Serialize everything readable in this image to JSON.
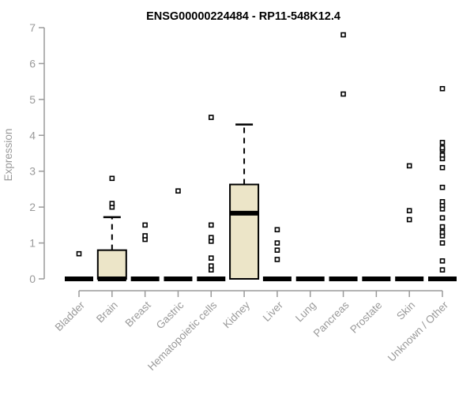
{
  "chart_data": {
    "type": "boxplot",
    "title": "ENSG00000224484 - RP11-548K12.4",
    "ylabel": "Expression",
    "xlabel": "",
    "ylim": [
      0,
      7
    ],
    "yticks": [
      0,
      1,
      2,
      3,
      4,
      5,
      6,
      7
    ],
    "grid": false,
    "legend": "none",
    "categories": [
      "Bladder",
      "Brain",
      "Breast",
      "Gastric",
      "Hematopoietic cells",
      "Kidney",
      "Liver",
      "Lung",
      "Pancreas",
      "Prostate",
      "Skin",
      "Unknown / Other"
    ],
    "boxes": [
      {
        "category": "Bladder",
        "q1": 0,
        "median": 0,
        "q3": 0,
        "whisker_low": 0,
        "whisker_high": 0,
        "outliers": [
          0.7
        ]
      },
      {
        "category": "Brain",
        "q1": 0,
        "median": 0,
        "q3": 0.8,
        "whisker_low": 0,
        "whisker_high": 1.72,
        "outliers": [
          2.0,
          2.1,
          2.8
        ]
      },
      {
        "category": "Breast",
        "q1": 0,
        "median": 0,
        "q3": 0,
        "whisker_low": 0,
        "whisker_high": 0,
        "outliers": [
          1.1,
          1.2,
          1.5
        ]
      },
      {
        "category": "Gastric",
        "q1": 0,
        "median": 0,
        "q3": 0,
        "whisker_low": 0,
        "whisker_high": 0,
        "outliers": [
          2.45
        ]
      },
      {
        "category": "Hematopoietic cells",
        "q1": 0,
        "median": 0,
        "q3": 0,
        "whisker_low": 0,
        "whisker_high": 0,
        "outliers": [
          0.25,
          0.36,
          0.58,
          1.05,
          1.15,
          1.5,
          4.5
        ]
      },
      {
        "category": "Kidney",
        "q1": 0,
        "median": 1.83,
        "q3": 2.63,
        "whisker_low": 0,
        "whisker_high": 4.3,
        "outliers": []
      },
      {
        "category": "Liver",
        "q1": 0,
        "median": 0,
        "q3": 0,
        "whisker_low": 0,
        "whisker_high": 0,
        "outliers": [
          0.54,
          0.8,
          1.0,
          1.37
        ]
      },
      {
        "category": "Lung",
        "q1": 0,
        "median": 0,
        "q3": 0,
        "whisker_low": 0,
        "whisker_high": 0,
        "outliers": []
      },
      {
        "category": "Pancreas",
        "q1": 0,
        "median": 0,
        "q3": 0,
        "whisker_low": 0,
        "whisker_high": 0,
        "outliers": [
          5.15,
          6.8
        ]
      },
      {
        "category": "Prostate",
        "q1": 0,
        "median": 0,
        "q3": 0,
        "whisker_low": 0,
        "whisker_high": 0,
        "outliers": []
      },
      {
        "category": "Skin",
        "q1": 0,
        "median": 0,
        "q3": 0,
        "whisker_low": 0,
        "whisker_high": 0,
        "outliers": [
          1.65,
          1.9,
          3.15
        ]
      },
      {
        "category": "Unknown / Other",
        "q1": 0,
        "median": 0,
        "q3": 0,
        "whisker_low": 0,
        "whisker_high": 0,
        "outliers": [
          0.25,
          0.5,
          1.0,
          1.2,
          1.3,
          1.45,
          1.7,
          1.95,
          2.05,
          2.15,
          2.55,
          3.1,
          3.35,
          3.45,
          3.6,
          3.65,
          3.8,
          5.3
        ]
      }
    ],
    "colors": {
      "background": "#ffffff",
      "box_fill": "#ece5c8",
      "box_stroke": "#000000",
      "median": "#000000",
      "whisker": "#000000",
      "outlier_stroke": "#000000",
      "outlier_fill": "#ffffff",
      "axis": "#9a9a9a",
      "tick_label": "#9a9a9a",
      "title": "#000000"
    }
  }
}
